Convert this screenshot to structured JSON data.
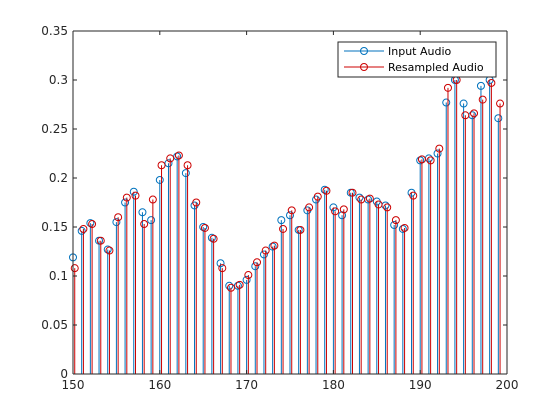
{
  "chart_data": {
    "type": "stem",
    "title": "",
    "xlabel": "",
    "ylabel": "",
    "xlim": [
      150,
      200
    ],
    "ylim": [
      0,
      0.35
    ],
    "grid": false,
    "legend_position": "top-right",
    "xticks": [
      150,
      160,
      170,
      180,
      190,
      200
    ],
    "xtick_labels": [
      "150",
      "160",
      "170",
      "180",
      "190",
      "200"
    ],
    "yticks": [
      0,
      0.05,
      0.1,
      0.15,
      0.2,
      0.25,
      0.3,
      0.35
    ],
    "ytick_labels": [
      "0",
      "0.05",
      "0.1",
      "0.15",
      "0.2",
      "0.25",
      "0.3",
      "0.35"
    ],
    "series": [
      {
        "name": "Input Audio",
        "color": "#0072BD",
        "marker": "circle",
        "x": [
          150,
          151,
          152,
          153,
          154,
          155,
          156,
          157,
          158,
          159,
          160,
          161,
          162,
          163,
          164,
          165,
          166,
          167,
          168,
          169,
          170,
          171,
          172,
          173,
          174,
          175,
          176,
          177,
          178,
          179,
          180,
          181,
          182,
          183,
          184,
          185,
          186,
          187,
          188,
          189,
          190,
          191,
          192,
          193,
          194,
          195,
          196,
          197,
          198,
          199
        ],
        "y": [
          0.119,
          0.146,
          0.154,
          0.136,
          0.127,
          0.155,
          0.175,
          0.186,
          0.165,
          0.157,
          0.198,
          0.215,
          0.222,
          0.205,
          0.172,
          0.15,
          0.139,
          0.113,
          0.09,
          0.09,
          0.096,
          0.11,
          0.122,
          0.13,
          0.157,
          0.162,
          0.147,
          0.167,
          0.178,
          0.188,
          0.17,
          0.162,
          0.185,
          0.18,
          0.178,
          0.176,
          0.172,
          0.152,
          0.148,
          0.185,
          0.218,
          0.22,
          0.225,
          0.277,
          0.3,
          0.276,
          0.264,
          0.294,
          0.3,
          0.261
        ]
      },
      {
        "name": "Resampled Audio",
        "color": "#CC0000",
        "marker": "circle",
        "x": [
          150.2,
          151.2,
          152.2,
          153.2,
          154.2,
          155.2,
          156.2,
          157.2,
          158.2,
          159.2,
          160.2,
          161.2,
          162.2,
          163.2,
          164.2,
          165.2,
          166.2,
          167.2,
          168.2,
          169.2,
          170.2,
          171.2,
          172.2,
          173.2,
          174.2,
          175.2,
          176.2,
          177.2,
          178.2,
          179.2,
          180.2,
          181.2,
          182.2,
          183.2,
          184.2,
          185.2,
          186.2,
          187.2,
          188.2,
          189.2,
          190.2,
          191.2,
          192.2,
          193.2,
          194.2,
          195.2,
          196.2,
          197.2,
          198.2,
          199.2
        ],
        "y": [
          0.108,
          0.148,
          0.153,
          0.136,
          0.126,
          0.16,
          0.18,
          0.182,
          0.153,
          0.178,
          0.213,
          0.22,
          0.223,
          0.213,
          0.175,
          0.149,
          0.138,
          0.108,
          0.088,
          0.091,
          0.101,
          0.114,
          0.126,
          0.131,
          0.148,
          0.167,
          0.147,
          0.17,
          0.181,
          0.187,
          0.166,
          0.168,
          0.185,
          0.178,
          0.179,
          0.173,
          0.17,
          0.157,
          0.149,
          0.182,
          0.219,
          0.218,
          0.23,
          0.292,
          0.3,
          0.264,
          0.266,
          0.28,
          0.297,
          0.276
        ]
      }
    ]
  }
}
